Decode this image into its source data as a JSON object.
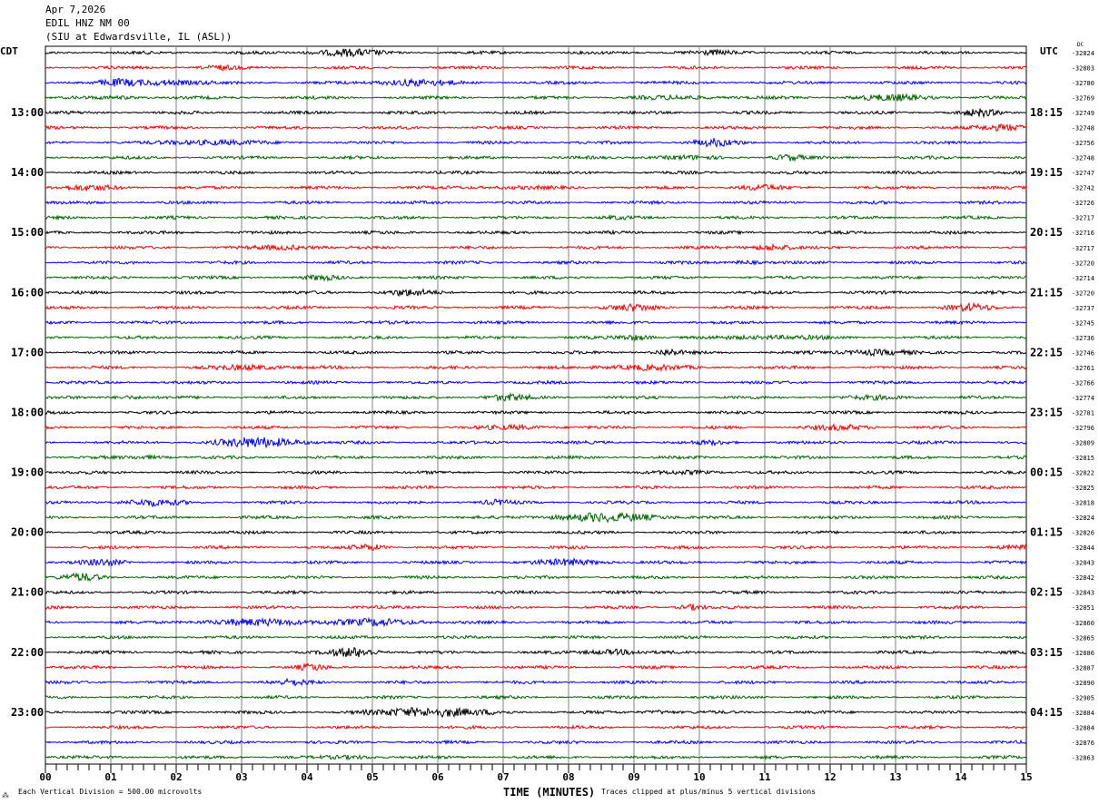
{
  "header": {
    "date": "Apr 7,2026",
    "station": "EDIL HNZ NM 00",
    "location": "(SIU at Edwardsville, IL  (ASL))"
  },
  "chart_data": {
    "type": "line",
    "title": "",
    "left_timezone": "CDT",
    "right_timezone": "UTC",
    "dc_label": "DC",
    "xlabel": "TIME (MINUTES)",
    "xlim": [
      0,
      15
    ],
    "x_tick_labels": [
      "00",
      "01",
      "02",
      "03",
      "04",
      "05",
      "06",
      "07",
      "08",
      "09",
      "10",
      "11",
      "12",
      "13",
      "14",
      "15"
    ],
    "left_hour_labels": [
      "13:00",
      "14:00",
      "15:00",
      "16:00",
      "17:00",
      "18:00",
      "19:00",
      "20:00",
      "21:00",
      "22:00",
      "23:00"
    ],
    "right_hour_labels": [
      "18:15",
      "19:15",
      "20:15",
      "21:15",
      "22:15",
      "23:15",
      "00:15",
      "01:15",
      "02:15",
      "03:15",
      "04:15"
    ],
    "trace_colors": [
      "#000000",
      "#ff0000",
      "#0000ff",
      "#006400"
    ],
    "dc_offsets": [
      -32824,
      -32803,
      -32780,
      -32769,
      -32749,
      -32748,
      -32756,
      -32748,
      -32747,
      -32742,
      -32726,
      -32717,
      -32716,
      -32717,
      -32720,
      -32714,
      -32720,
      -32737,
      -32745,
      -32736,
      -32746,
      -32761,
      -32766,
      -32774,
      -32781,
      -32796,
      -32809,
      -32815,
      -32822,
      -32825,
      -32818,
      -32824,
      -32826,
      -32844,
      -32843,
      -32842,
      -32843,
      -32851,
      -32860,
      -32865,
      -32886,
      -32887,
      -32890,
      -32905,
      -32884,
      -32884,
      -32876,
      -32863
    ],
    "scale_note": "Each Vertical Division =  500.00 microvolts",
    "clip_note": "Traces clipped at plus/minus 5 vertical divisions"
  }
}
